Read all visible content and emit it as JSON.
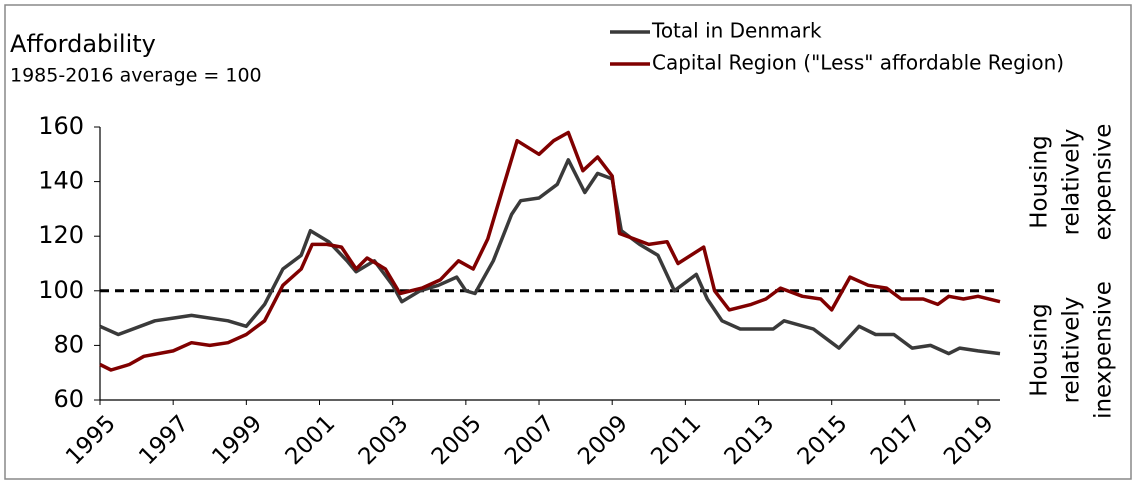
{
  "chart_data": {
    "type": "line",
    "title": "Affordability",
    "subtitle": "1985-2016  average = 100",
    "xlim": [
      1995,
      2019.6
    ],
    "xticks": [
      1995,
      1997,
      1999,
      2001,
      2003,
      2005,
      2007,
      2009,
      2011,
      2013,
      2015,
      2017,
      2019
    ],
    "ylim": [
      60,
      160
    ],
    "yticks": [
      60,
      80,
      100,
      120,
      140,
      160
    ],
    "reference_line": 100,
    "grid": false,
    "series": [
      {
        "name": "Total in Denmark",
        "color": "#3a3a3a",
        "x": [
          1995.0,
          1995.5,
          1996.5,
          1997.0,
          1997.5,
          1998.5,
          1999.0,
          1999.5,
          2000.0,
          2000.5,
          2000.75,
          2001.25,
          2001.75,
          2002.0,
          2002.5,
          2003.0,
          2003.25,
          2003.75,
          2004.25,
          2004.75,
          2005.0,
          2005.25,
          2005.75,
          2006.25,
          2006.5,
          2007.0,
          2007.5,
          2007.8,
          2008.25,
          2008.6,
          2009.0,
          2009.25,
          2009.75,
          2010.25,
          2010.7,
          2011.3,
          2011.6,
          2012.0,
          2012.5,
          2013.0,
          2013.4,
          2013.7,
          2014.5,
          2015.0,
          2015.2,
          2015.75,
          2016.2,
          2016.7,
          2017.2,
          2017.7,
          2018.2,
          2018.5,
          2019.0,
          2019.6
        ],
        "values": [
          87,
          84,
          89,
          90,
          91,
          89,
          87,
          95,
          108,
          113,
          122,
          118,
          111,
          107,
          111,
          102,
          96,
          100,
          102,
          105,
          100,
          99,
          111,
          128,
          133,
          134,
          139,
          148,
          136,
          143,
          141,
          122,
          117,
          113,
          100,
          106,
          97,
          89,
          86,
          86,
          86,
          89,
          86,
          81,
          79,
          87,
          84,
          84,
          79,
          80,
          77,
          79,
          78,
          77
        ]
      },
      {
        "name": "Capital Region (\"Less\" affordable Region)",
        "color": "#800000",
        "x": [
          1995.0,
          1995.3,
          1995.8,
          1996.2,
          1997.0,
          1997.5,
          1998.0,
          1998.5,
          1999.0,
          1999.5,
          2000.0,
          2000.5,
          2000.8,
          2001.2,
          2001.6,
          2002.0,
          2002.3,
          2002.8,
          2003.2,
          2003.8,
          2004.3,
          2004.8,
          2005.2,
          2005.6,
          2006.0,
          2006.4,
          2007.0,
          2007.4,
          2007.8,
          2008.2,
          2008.6,
          2009.0,
          2009.2,
          2009.6,
          2010.0,
          2010.5,
          2010.8,
          2011.5,
          2011.8,
          2012.2,
          2012.8,
          2013.2,
          2013.6,
          2014.2,
          2014.7,
          2015.0,
          2015.5,
          2016.0,
          2016.5,
          2016.9,
          2017.5,
          2017.9,
          2018.2,
          2018.6,
          2019.0,
          2019.6
        ],
        "values": [
          73,
          71,
          73,
          76,
          78,
          81,
          80,
          81,
          84,
          89,
          102,
          108,
          117,
          117,
          116,
          108,
          112,
          108,
          99,
          101,
          104,
          111,
          108,
          119,
          137,
          155,
          150,
          155,
          158,
          144,
          149,
          142,
          121,
          119,
          117,
          118,
          110,
          116,
          100,
          93,
          95,
          97,
          101,
          98,
          97,
          93,
          105,
          102,
          101,
          97,
          97,
          95,
          98,
          97,
          98,
          96
        ]
      }
    ],
    "annotations": [
      [
        "Housing",
        "relatively",
        "expensive"
      ],
      [
        "Housing",
        "relatively",
        "inexpensive"
      ]
    ]
  }
}
